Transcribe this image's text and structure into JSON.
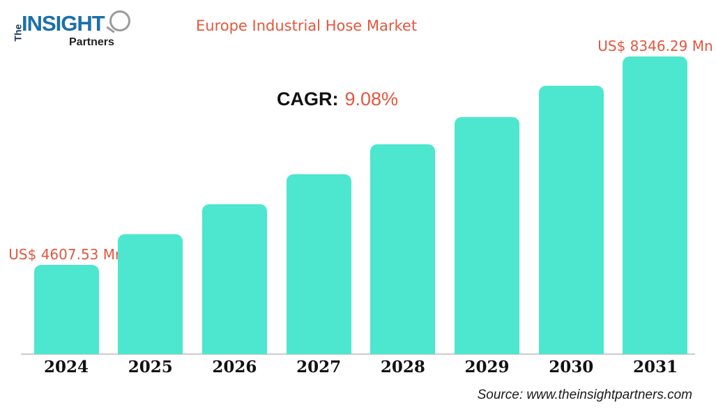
{
  "page": {
    "background": "#ffffff"
  },
  "logo": {
    "the": "The",
    "insight": "INSIGHT",
    "partners": "Partners",
    "colors": {
      "the": "#163a5e",
      "insight": "#1c70a9",
      "partners": "#231f20",
      "magnifier": "#9a9a9a"
    }
  },
  "header": {
    "title": "Europe Industrial Hose Market",
    "title_color": "#e2573e"
  },
  "cagr": {
    "label": "CAGR:",
    "value": "9.08%",
    "label_color": "#111111",
    "value_color": "#e2573e"
  },
  "chart_data": {
    "type": "bar",
    "title": "Europe Industrial Hose Market",
    "unit": "US$ Mn",
    "categories": [
      "2024",
      "2025",
      "2026",
      "2027",
      "2028",
      "2029",
      "2030",
      "2031"
    ],
    "values": [
      4607.53,
      5156,
      5704,
      6240,
      6776,
      7262,
      7823,
      8346.29
    ],
    "data_labels": [
      "US$ 4607.53 Mn",
      "",
      "",
      "",
      "",
      "",
      "",
      "US$ 8346.29 Mn"
    ],
    "cagr_percent": 9.08,
    "bar_color": "#4de6ce",
    "label_color": "#e2573e",
    "axis_line_color": "#cccccc",
    "ylim": [
      3012,
      8346.29
    ],
    "grid": false,
    "legend": false,
    "x_tick_color": "#111111"
  },
  "footer": {
    "source": "Source: www.theinsightpartners.com"
  }
}
